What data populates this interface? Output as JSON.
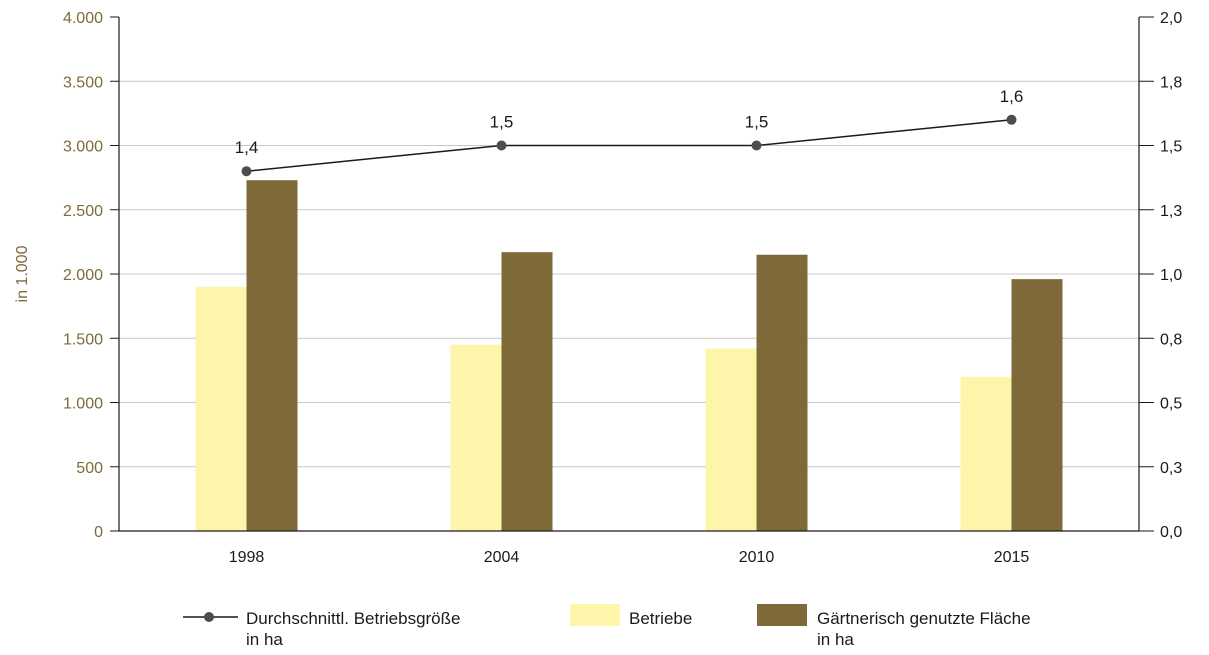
{
  "colors": {
    "betriebe": "#fdf5a9",
    "flaeche": "#7e6a38",
    "line": "#1a1a1a",
    "marker": "#4d4d4d",
    "grid": "#c8c8c8",
    "left_axis_text": "#7e6a38"
  },
  "chart_data": {
    "type": "bar",
    "title": "",
    "categories": [
      "1998",
      "2004",
      "2010",
      "2015"
    ],
    "ylabel": "in 1.000",
    "ylim": [
      0,
      4000
    ],
    "yticks": [
      0,
      500,
      1000,
      1500,
      2000,
      2500,
      3000,
      3500,
      4000
    ],
    "ytick_labels": [
      "0",
      "500",
      "1.000",
      "1.500",
      "2.000",
      "2.500",
      "3.000",
      "3.500",
      "4.000"
    ],
    "y2lim": [
      0,
      2
    ],
    "y2ticks": [
      0,
      0.25,
      0.5,
      0.75,
      1.0,
      1.25,
      1.5,
      1.75,
      2.0
    ],
    "y2tick_labels": [
      "0,0",
      "0,3",
      "0,5",
      "0,8",
      "1,0",
      "1,3",
      "1,5",
      "1,8",
      "2,0"
    ],
    "grid": true,
    "legend_position": "bottom",
    "series": [
      {
        "name": "Betriebe",
        "kind": "bar",
        "axis": "left",
        "values": [
          1900,
          1450,
          1420,
          1200
        ]
      },
      {
        "name": "Gärtnerisch genutzte Fläche in ha",
        "kind": "bar",
        "axis": "left",
        "values": [
          2730,
          2170,
          2150,
          1960
        ]
      },
      {
        "name": "Durchschnittl. Betriebsgröße in ha",
        "kind": "line",
        "axis": "right",
        "values": [
          1.4,
          1.5,
          1.5,
          1.6
        ],
        "labels": [
          "1,4",
          "1,5",
          "1,5",
          "1,6"
        ]
      }
    ]
  },
  "legend": {
    "line_label_1": "Durchschnittl. Betriebsgröße",
    "line_label_2": "in ha",
    "betriebe_label": "Betriebe",
    "flaeche_label_1": "Gärtnerisch genutzte Fläche",
    "flaeche_label_2": "in ha"
  }
}
